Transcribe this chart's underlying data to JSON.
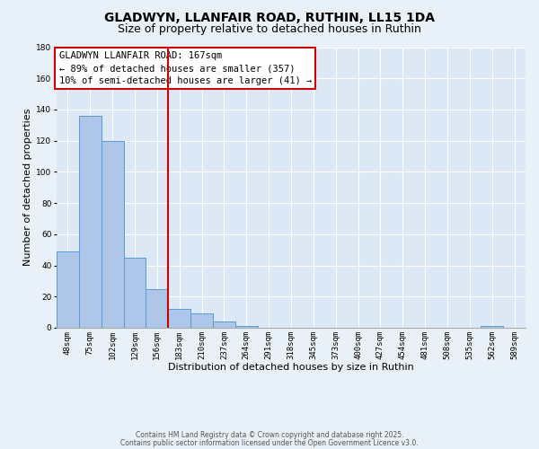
{
  "title": "GLADWYN, LLANFAIR ROAD, RUTHIN, LL15 1DA",
  "subtitle": "Size of property relative to detached houses in Ruthin",
  "xlabel": "Distribution of detached houses by size in Ruthin",
  "ylabel": "Number of detached properties",
  "categories": [
    "48sqm",
    "75sqm",
    "102sqm",
    "129sqm",
    "156sqm",
    "183sqm",
    "210sqm",
    "237sqm",
    "264sqm",
    "291sqm",
    "318sqm",
    "345sqm",
    "373sqm",
    "400sqm",
    "427sqm",
    "454sqm",
    "481sqm",
    "508sqm",
    "535sqm",
    "562sqm",
    "589sqm"
  ],
  "values": [
    49,
    136,
    120,
    45,
    25,
    12,
    9,
    4,
    1,
    0,
    0,
    0,
    0,
    0,
    0,
    0,
    0,
    0,
    0,
    1,
    0
  ],
  "bar_color": "#aec6e8",
  "bar_edge_color": "#5b9bd5",
  "vline_x": 4.5,
  "vline_color": "#cc0000",
  "annotation_text": "GLADWYN LLANFAIR ROAD: 167sqm\n← 89% of detached houses are smaller (357)\n10% of semi-detached houses are larger (41) →",
  "annotation_box_color": "#ffffff",
  "annotation_box_edge_color": "#cc0000",
  "ylim": [
    0,
    180
  ],
  "yticks": [
    0,
    20,
    40,
    60,
    80,
    100,
    120,
    140,
    160,
    180
  ],
  "footer1": "Contains HM Land Registry data © Crown copyright and database right 2025.",
  "footer2": "Contains public sector information licensed under the Open Government Licence v3.0.",
  "bg_color": "#e8f0f8",
  "plot_bg_color": "#dce8f5",
  "title_fontsize": 10,
  "subtitle_fontsize": 9,
  "axis_label_fontsize": 8,
  "tick_fontsize": 6.5,
  "annotation_fontsize": 7.5,
  "footer_fontsize": 5.5
}
